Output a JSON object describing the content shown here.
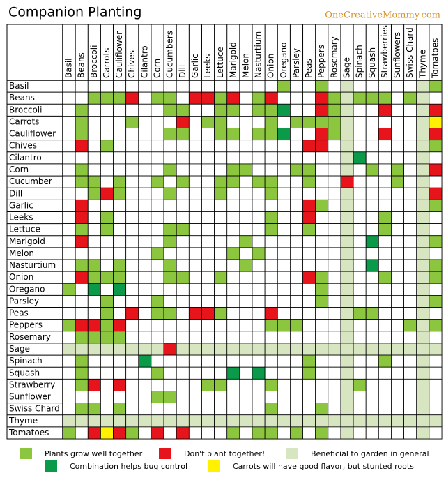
{
  "header": {
    "title": "Companion Planting",
    "brand": "OneCreativeMommy.com"
  },
  "grid": {
    "columns": [
      "Basil",
      "Beans",
      "Broccoli",
      "Carrots",
      "Cauliflower",
      "Chives",
      "Cilantro",
      "Corn",
      "Cucumbers",
      "Dill",
      "Garlic",
      "Leeks",
      "Lettuce",
      "Marigold",
      "Melon",
      "Nasturtium",
      "Onion",
      "Oregano",
      "Parsley",
      "Peas",
      "Peppers",
      "Rosemary",
      "Sage",
      "Spinach",
      "Squash",
      "Strawberries",
      "Sunflowers",
      "Swiss Chard",
      "Thyme",
      "Tomatoes"
    ],
    "rows": [
      "Basil",
      "Beans",
      "Broccoli",
      "Carrots",
      "Cauliflower",
      "Chives",
      "Cilantro",
      "Corn",
      "Cucumber",
      "Dill",
      "Garlic",
      "Leeks",
      "Lettuce",
      "Marigold",
      "Melon",
      "Nasturtium",
      "Onion",
      "Oregano",
      "Parsley",
      "Peas",
      "Peppers",
      "Rosemary",
      "Sage",
      "Spinach",
      "Squash",
      "Strawberry",
      "Sunflower",
      "Swiss Chard",
      "Thyme",
      "Tomatoes"
    ],
    "cells": [
      [
        0,
        0,
        0,
        0,
        0,
        0,
        0,
        0,
        0,
        0,
        0,
        0,
        0,
        0,
        0,
        0,
        0,
        1,
        0,
        0,
        1,
        0,
        5,
        0,
        0,
        0,
        0,
        0,
        5,
        1
      ],
      [
        0,
        0,
        1,
        1,
        1,
        2,
        0,
        1,
        1,
        0,
        2,
        2,
        1,
        2,
        0,
        1,
        2,
        0,
        0,
        0,
        2,
        1,
        5,
        1,
        1,
        1,
        0,
        1,
        5,
        0
      ],
      [
        0,
        1,
        0,
        0,
        0,
        0,
        0,
        0,
        1,
        1,
        0,
        0,
        1,
        1,
        0,
        1,
        1,
        3,
        0,
        0,
        2,
        1,
        5,
        0,
        0,
        2,
        0,
        0,
        5,
        2
      ],
      [
        0,
        1,
        0,
        0,
        0,
        1,
        0,
        0,
        0,
        2,
        0,
        1,
        1,
        0,
        0,
        0,
        1,
        0,
        1,
        1,
        1,
        1,
        5,
        0,
        0,
        0,
        0,
        0,
        5,
        4
      ],
      [
        0,
        1,
        0,
        0,
        0,
        0,
        0,
        0,
        1,
        1,
        0,
        0,
        1,
        1,
        0,
        1,
        1,
        3,
        0,
        0,
        2,
        1,
        5,
        0,
        0,
        2,
        0,
        0,
        5,
        2
      ],
      [
        0,
        2,
        0,
        1,
        0,
        0,
        0,
        0,
        0,
        0,
        0,
        0,
        0,
        0,
        0,
        0,
        0,
        0,
        0,
        2,
        2,
        0,
        5,
        0,
        0,
        0,
        0,
        0,
        5,
        1
      ],
      [
        0,
        0,
        0,
        0,
        0,
        0,
        0,
        0,
        0,
        0,
        0,
        0,
        0,
        0,
        0,
        0,
        0,
        0,
        0,
        0,
        0,
        0,
        5,
        3,
        0,
        0,
        0,
        0,
        5,
        0
      ],
      [
        0,
        1,
        0,
        0,
        0,
        0,
        0,
        0,
        1,
        0,
        0,
        0,
        0,
        1,
        1,
        0,
        0,
        0,
        1,
        1,
        0,
        0,
        5,
        0,
        1,
        0,
        1,
        0,
        5,
        2
      ],
      [
        0,
        1,
        1,
        0,
        1,
        0,
        0,
        1,
        0,
        1,
        0,
        0,
        1,
        1,
        0,
        1,
        1,
        0,
        0,
        1,
        0,
        0,
        2,
        0,
        0,
        0,
        1,
        0,
        5,
        0
      ],
      [
        0,
        0,
        1,
        2,
        1,
        0,
        0,
        0,
        1,
        0,
        0,
        0,
        1,
        0,
        0,
        0,
        1,
        0,
        0,
        0,
        0,
        0,
        5,
        0,
        0,
        0,
        0,
        0,
        5,
        2
      ],
      [
        0,
        2,
        0,
        0,
        0,
        0,
        0,
        0,
        0,
        0,
        0,
        0,
        0,
        0,
        0,
        0,
        0,
        0,
        0,
        2,
        1,
        0,
        5,
        0,
        0,
        0,
        0,
        0,
        5,
        1
      ],
      [
        0,
        2,
        0,
        1,
        0,
        0,
        0,
        0,
        0,
        0,
        0,
        0,
        0,
        0,
        0,
        0,
        1,
        0,
        0,
        2,
        0,
        0,
        5,
        0,
        0,
        1,
        0,
        0,
        5,
        0
      ],
      [
        0,
        1,
        0,
        1,
        0,
        0,
        0,
        0,
        1,
        1,
        0,
        0,
        0,
        0,
        0,
        0,
        1,
        0,
        0,
        1,
        0,
        0,
        5,
        0,
        0,
        1,
        0,
        0,
        5,
        0
      ],
      [
        0,
        2,
        0,
        0,
        0,
        0,
        0,
        0,
        1,
        0,
        0,
        0,
        0,
        0,
        1,
        0,
        0,
        0,
        0,
        0,
        0,
        0,
        5,
        0,
        3,
        0,
        0,
        0,
        5,
        1
      ],
      [
        0,
        0,
        0,
        0,
        0,
        0,
        0,
        1,
        0,
        0,
        0,
        0,
        0,
        1,
        0,
        1,
        0,
        0,
        0,
        0,
        0,
        0,
        5,
        0,
        0,
        0,
        0,
        0,
        5,
        0
      ],
      [
        0,
        1,
        1,
        0,
        1,
        0,
        0,
        0,
        1,
        0,
        0,
        0,
        0,
        0,
        1,
        0,
        0,
        0,
        0,
        0,
        0,
        0,
        5,
        0,
        3,
        0,
        0,
        0,
        5,
        1
      ],
      [
        0,
        2,
        1,
        1,
        1,
        0,
        0,
        0,
        1,
        1,
        0,
        0,
        1,
        0,
        0,
        0,
        0,
        0,
        0,
        2,
        1,
        0,
        5,
        0,
        0,
        1,
        0,
        0,
        5,
        1
      ],
      [
        1,
        0,
        3,
        0,
        3,
        0,
        0,
        0,
        0,
        0,
        0,
        0,
        0,
        0,
        0,
        0,
        0,
        0,
        0,
        0,
        1,
        0,
        5,
        0,
        0,
        0,
        0,
        0,
        5,
        0
      ],
      [
        0,
        0,
        0,
        1,
        0,
        0,
        0,
        1,
        0,
        0,
        0,
        0,
        0,
        0,
        0,
        0,
        0,
        0,
        0,
        0,
        1,
        0,
        5,
        0,
        0,
        0,
        0,
        0,
        5,
        1
      ],
      [
        0,
        0,
        0,
        1,
        0,
        2,
        0,
        1,
        1,
        0,
        2,
        2,
        1,
        0,
        0,
        0,
        2,
        0,
        0,
        0,
        0,
        0,
        5,
        1,
        1,
        0,
        0,
        0,
        5,
        0
      ],
      [
        1,
        2,
        2,
        1,
        2,
        0,
        0,
        0,
        0,
        0,
        0,
        0,
        0,
        0,
        0,
        0,
        1,
        1,
        1,
        0,
        0,
        0,
        5,
        0,
        0,
        0,
        0,
        1,
        5,
        1
      ],
      [
        0,
        1,
        1,
        1,
        1,
        0,
        0,
        0,
        0,
        0,
        0,
        0,
        0,
        0,
        0,
        0,
        0,
        0,
        0,
        0,
        0,
        0,
        5,
        0,
        0,
        0,
        0,
        0,
        5,
        0
      ],
      [
        5,
        5,
        5,
        5,
        5,
        5,
        5,
        5,
        2,
        5,
        5,
        5,
        5,
        5,
        5,
        5,
        5,
        5,
        5,
        5,
        5,
        5,
        5,
        5,
        5,
        5,
        5,
        5,
        5,
        5
      ],
      [
        0,
        1,
        0,
        0,
        0,
        0,
        3,
        0,
        0,
        0,
        0,
        0,
        0,
        0,
        0,
        0,
        0,
        0,
        0,
        1,
        0,
        0,
        5,
        0,
        0,
        1,
        0,
        0,
        5,
        0
      ],
      [
        0,
        1,
        0,
        0,
        0,
        0,
        0,
        1,
        0,
        0,
        0,
        0,
        0,
        3,
        0,
        3,
        0,
        0,
        0,
        1,
        0,
        0,
        5,
        0,
        0,
        0,
        0,
        0,
        5,
        0
      ],
      [
        0,
        1,
        2,
        0,
        2,
        0,
        0,
        0,
        0,
        0,
        0,
        1,
        1,
        0,
        0,
        0,
        1,
        0,
        0,
        0,
        0,
        0,
        5,
        1,
        0,
        0,
        0,
        0,
        5,
        0
      ],
      [
        0,
        0,
        0,
        0,
        0,
        0,
        0,
        1,
        1,
        0,
        0,
        0,
        0,
        0,
        0,
        0,
        0,
        0,
        0,
        0,
        0,
        0,
        5,
        0,
        0,
        0,
        0,
        0,
        5,
        0
      ],
      [
        0,
        1,
        1,
        0,
        1,
        0,
        0,
        0,
        0,
        0,
        0,
        0,
        0,
        0,
        0,
        0,
        1,
        0,
        0,
        0,
        1,
        0,
        5,
        0,
        0,
        0,
        0,
        0,
        5,
        0
      ],
      [
        5,
        5,
        5,
        5,
        5,
        5,
        5,
        5,
        5,
        5,
        5,
        5,
        5,
        5,
        5,
        5,
        5,
        5,
        5,
        5,
        5,
        5,
        5,
        5,
        5,
        5,
        5,
        5,
        5,
        5
      ],
      [
        1,
        0,
        2,
        4,
        2,
        1,
        0,
        2,
        0,
        2,
        0,
        0,
        0,
        1,
        0,
        1,
        1,
        0,
        1,
        0,
        1,
        0,
        5,
        0,
        0,
        0,
        0,
        0,
        5,
        0
      ]
    ]
  },
  "legend": [
    {
      "code": 0,
      "color": "#ffffff"
    },
    {
      "code": 1,
      "color": "#8cc63f",
      "label": "Plants grow well together"
    },
    {
      "code": 2,
      "color": "#e8141b",
      "label": "Don't plant together!"
    },
    {
      "code": 5,
      "color": "#d7e5c1",
      "label": "Beneficial to garden in general"
    },
    {
      "code": 3,
      "color": "#0a9a4a",
      "label": "Combination helps bug control"
    },
    {
      "code": 4,
      "color": "#fff200",
      "label": "Carrots will have good flavor, but stunted roots"
    }
  ]
}
